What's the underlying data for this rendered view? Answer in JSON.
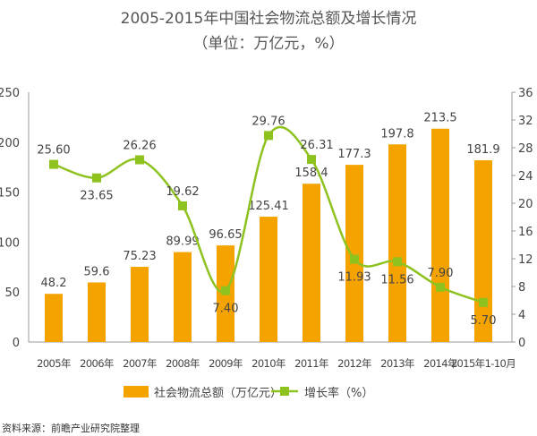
{
  "chart_data": {
    "type": "bar+line",
    "title": "2005-2015年中国社会物流总额及增长情况",
    "subtitle": "（单位：万亿元，%）",
    "categories": [
      "2005年",
      "2006年",
      "2007年",
      "2008年",
      "2009年",
      "2010年",
      "2011年",
      "2012年",
      "2013年",
      "2014年",
      "2015年1-10月"
    ],
    "series": [
      {
        "name": "社会物流总额（万亿元）",
        "type": "bar",
        "axis": "left",
        "color": "#F5A300",
        "values": [
          48.2,
          59.6,
          75.23,
          89.99,
          96.65,
          125.41,
          158.4,
          177.3,
          197.8,
          213.5,
          181.9
        ],
        "labels": [
          "48.2",
          "59.6",
          "75.23",
          "89.99",
          "96.65",
          "125.41",
          "158.4",
          "177.3",
          "197.8",
          "213.5",
          "181.9"
        ]
      },
      {
        "name": "增长率（%）",
        "type": "line",
        "axis": "right",
        "color": "#8DC21F",
        "values": [
          25.6,
          23.65,
          26.26,
          19.62,
          7.4,
          29.76,
          26.31,
          11.93,
          11.56,
          7.9,
          5.7
        ],
        "labels": [
          "25.60",
          "23.65",
          "26.26",
          "19.62",
          "7.40",
          "29.76",
          "26.31",
          "11.93",
          "11.56",
          "7.90",
          "5.70"
        ]
      }
    ],
    "y_left": {
      "range": [
        0,
        250
      ],
      "ticks": [
        "0",
        "50",
        "100",
        "150",
        "200",
        "250"
      ]
    },
    "y_right": {
      "range": [
        0,
        36
      ],
      "ticks": [
        "0",
        "4",
        "8",
        "12",
        "16",
        "20",
        "24",
        "28",
        "32",
        "36"
      ]
    },
    "legend_position": "bottom",
    "source": "资料来源：前瞻产业研究院整理"
  }
}
